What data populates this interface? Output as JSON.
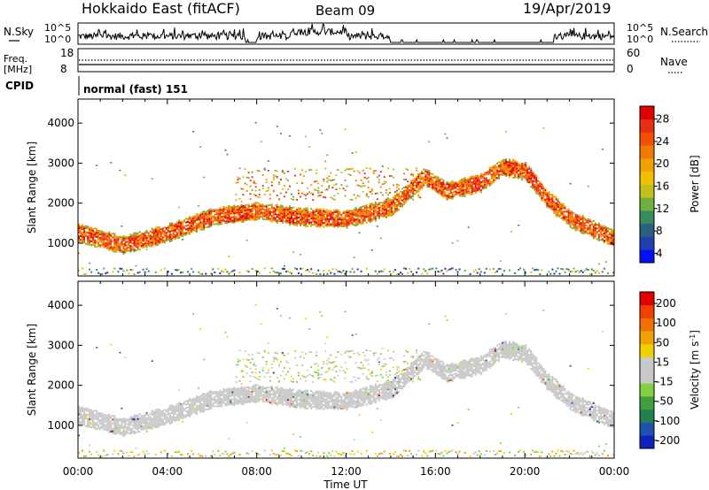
{
  "header": {
    "station": "Hokkaido East (fitACF)",
    "beam": "Beam 09",
    "date": "19/Apr/2019"
  },
  "noise_panel": {
    "left_label": "N.Sky",
    "right_label": "N.Search",
    "left_ticks": [
      "10^5",
      "10^0"
    ],
    "right_ticks": [
      "10^5",
      "10^0"
    ]
  },
  "freq_panel": {
    "left_label_line1": "Freq.",
    "left_label_line2": "[MHz]",
    "left_ticks": [
      "18",
      "8"
    ],
    "right_ticks": [
      "60",
      "0"
    ],
    "right_label": "Nave"
  },
  "cpid_panel": {
    "label": "CPID",
    "value": "normal (fast) 151"
  },
  "x_axis": {
    "ticks": [
      "00:00",
      "04:00",
      "08:00",
      "12:00",
      "16:00",
      "20:00",
      "00:00"
    ],
    "label": "Time UT"
  },
  "chart_data": [
    {
      "type": "heatmap",
      "parameter": "Power",
      "ylabel": "Slant Range [km]",
      "xlabel": "Time UT",
      "xlim_hours": [
        0,
        24
      ],
      "ylim_km": [
        180,
        4600
      ],
      "y_ticks": [
        1000,
        2000,
        3000,
        4000
      ],
      "colorbar": {
        "label": "Power [dB]",
        "ticks": [
          "28",
          "24",
          "20",
          "16",
          "12",
          "8",
          "4"
        ],
        "colors": [
          "#0010ff",
          "#2040b0",
          "#2a6080",
          "#3a8a60",
          "#70b040",
          "#c0c020",
          "#f0c000",
          "#f0a000",
          "#f07a00",
          "#f05000",
          "#e83010",
          "#e00000"
        ]
      },
      "main_echo_band_km": [
        {
          "hour": 0,
          "range": 1250
        },
        {
          "hour": 2,
          "range": 950
        },
        {
          "hour": 4,
          "range": 1250
        },
        {
          "hour": 6,
          "range": 1650
        },
        {
          "hour": 8,
          "range": 1800
        },
        {
          "hour": 10,
          "range": 1650
        },
        {
          "hour": 12,
          "range": 1600
        },
        {
          "hour": 14,
          "range": 1900
        },
        {
          "hour": 15.5,
          "range": 2650
        },
        {
          "hour": 16.5,
          "range": 2300
        },
        {
          "hour": 18,
          "range": 2500
        },
        {
          "hour": 19,
          "range": 2900
        },
        {
          "hour": 20,
          "range": 2800
        },
        {
          "hour": 21,
          "range": 2100
        },
        {
          "hour": 22,
          "range": 1600
        },
        {
          "hour": 24,
          "range": 1100
        }
      ]
    },
    {
      "type": "heatmap",
      "parameter": "Velocity",
      "ylabel": "Slant Range [km]",
      "xlabel": "Time UT",
      "xlim_hours": [
        0,
        24
      ],
      "ylim_km": [
        180,
        4600
      ],
      "y_ticks": [
        1000,
        2000,
        3000,
        4000
      ],
      "colorbar": {
        "label_main": "Velocity",
        "label_unit": "[m s",
        "label_exp": "-1",
        "label_close": "]",
        "ticks": [
          "200",
          "100",
          "50",
          "15",
          "-15",
          "-50",
          "-100",
          "-200"
        ],
        "colors": [
          "#1020c0",
          "#2050b0",
          "#208050",
          "#40a040",
          "#80d040",
          "#c8c8c8",
          "#c8c8c8",
          "#f0d000",
          "#f0a000",
          "#f07000",
          "#f04000",
          "#e00000"
        ]
      },
      "ground_scatter_color": "#c8c8c8"
    }
  ]
}
